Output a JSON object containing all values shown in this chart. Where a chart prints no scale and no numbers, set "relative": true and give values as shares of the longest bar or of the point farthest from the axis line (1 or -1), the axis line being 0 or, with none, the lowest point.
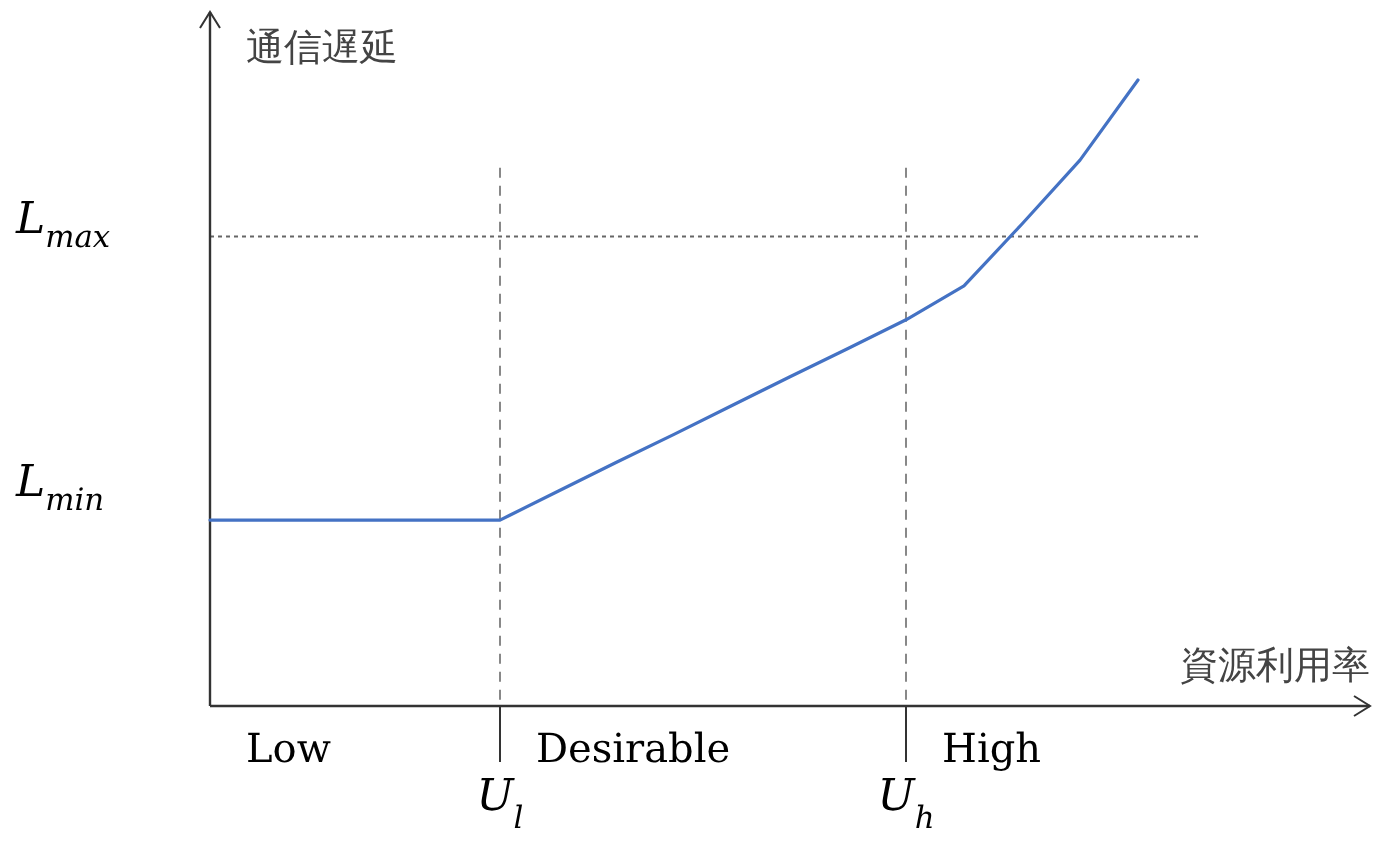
{
  "chart_data": {
    "type": "line",
    "relative": true,
    "xlabel": "資源利用率",
    "ylabel": "通信遅延",
    "categories": [
      null,
      null,
      null,
      null,
      null,
      "U$_{l}$",
      null,
      null,
      null,
      null,
      null,
      null,
      "U$_{h}$",
      null,
      null,
      null,
      null,
      null,
      null,
      null,
      null
    ],
    "values": [
      0.297,
      0.297,
      0.297,
      0.297,
      0.297,
      0.297,
      0.343,
      0.389,
      0.434,
      0.48,
      0.526,
      0.571,
      0.617,
      0.671,
      0.77,
      0.872,
      1,
      null,
      null,
      null,
      null
    ],
    "color": "#4472c4",
    "ref_lines": [
      {
        "axis": "x",
        "value": "U$_{l}$",
        "line_style": "dashed",
        "color": "#888888"
      },
      {
        "axis": "x",
        "value": "U$_{h}$",
        "line_style": "dashed",
        "color": "#888888"
      },
      {
        "axis": "y",
        "value": 0.75,
        "label": "L$_{max}$",
        "line_style": "dotted",
        "color": "#666666"
      }
    ],
    "annotations": [
      "L$_{min}$",
      "Low",
      "Desirable",
      "High"
    ]
  }
}
